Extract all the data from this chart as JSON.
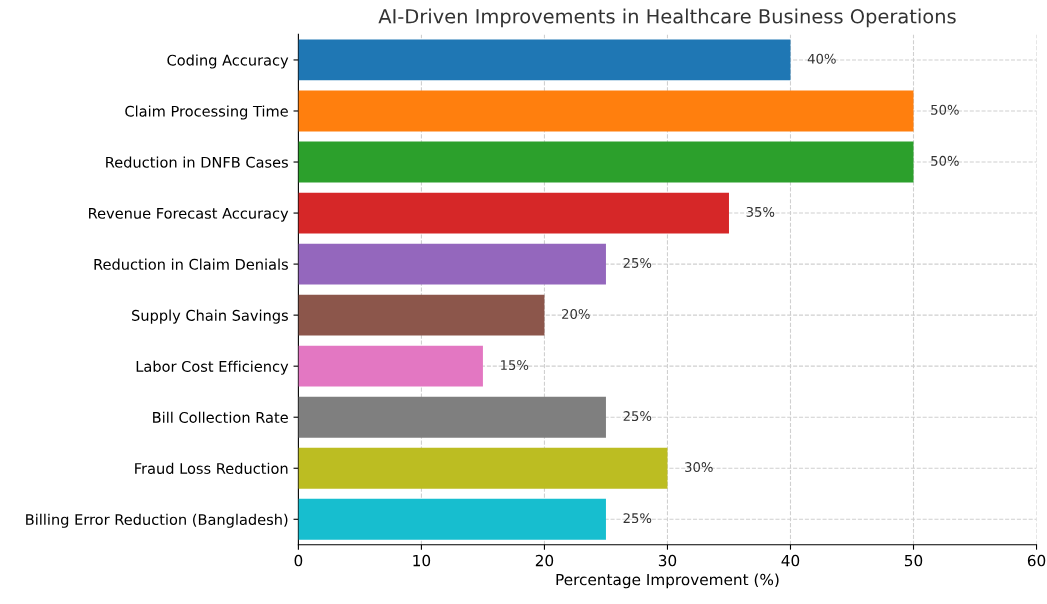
{
  "chart_data": {
    "type": "bar",
    "orientation": "horizontal",
    "title": "AI-Driven Improvements in Healthcare Business Operations",
    "xlabel": "Percentage Improvement (%)",
    "categories": [
      "Coding Accuracy",
      "Claim Processing Time",
      "Reduction in DNFB Cases",
      "Revenue Forecast Accuracy",
      "Reduction in Claim Denials",
      "Supply Chain Savings",
      "Labor Cost Efficiency",
      "Bill Collection Rate",
      "Fraud Loss Reduction",
      "Billing Error Reduction (Bangladesh)"
    ],
    "values": [
      40,
      50,
      50,
      35,
      25,
      20,
      15,
      25,
      30,
      25
    ],
    "colors": [
      "#1f77b4",
      "#ff7f0e",
      "#2ca02c",
      "#d62728",
      "#9467bd",
      "#8c564b",
      "#e377c2",
      "#7f7f7f",
      "#bcbd22",
      "#17becf"
    ],
    "value_labels": [
      "40%",
      "50%",
      "50%",
      "35%",
      "25%",
      "20%",
      "15%",
      "25%",
      "30%",
      "25%"
    ],
    "xlim": [
      0,
      60
    ],
    "xticks": [
      0,
      10,
      20,
      30,
      40,
      50,
      60
    ],
    "grid": true,
    "legend": false
  }
}
